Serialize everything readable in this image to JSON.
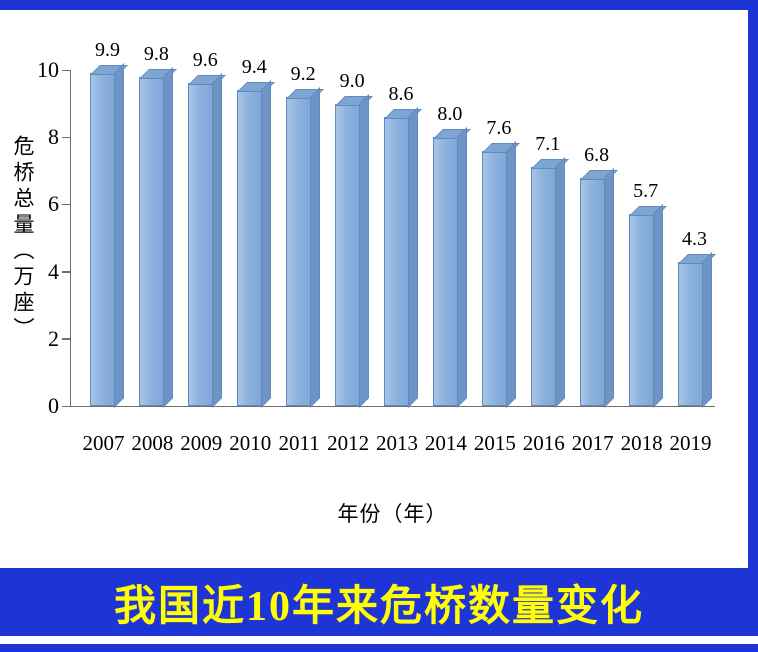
{
  "banner": {
    "title": "我国近10年来危桥数量变化",
    "bg_color": "#1e34d6",
    "text_color": "#ffff00"
  },
  "frame": {
    "color": "#1e34d6"
  },
  "chart_data": {
    "type": "bar",
    "title": "我国近10年来危桥数量变化",
    "categories": [
      "2007",
      "2008",
      "2009",
      "2010",
      "2011",
      "2012",
      "2013",
      "2014",
      "2015",
      "2016",
      "2017",
      "2018",
      "2019"
    ],
    "values": [
      9.9,
      9.8,
      9.6,
      9.4,
      9.2,
      9.0,
      8.6,
      8.0,
      7.6,
      7.1,
      6.8,
      5.7,
      4.3
    ],
    "xlabel": "年份（年）",
    "ylabel": "危桥总量（万座）",
    "ylim": [
      0,
      10
    ],
    "yticks": [
      0,
      2,
      4,
      6,
      8,
      10
    ],
    "grid": false,
    "legend": "none",
    "bar_color": "#87aedc",
    "bar_edge_color": "#5f8abd",
    "data_labels_visible": true
  }
}
